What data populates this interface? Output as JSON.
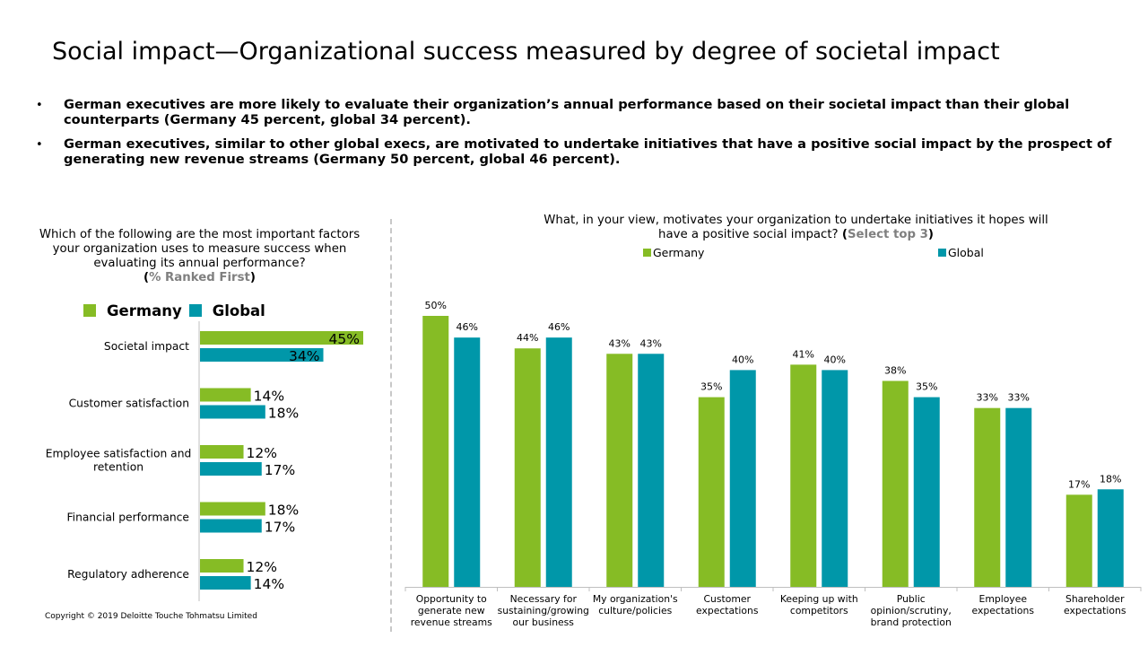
{
  "title": "Social impact—Organizational success measured by degree of societal impact",
  "bullets": [
    "German executives are more likely to evaluate their organization’s annual performance based on their societal impact than their global counterparts (Germany 45 percent, global 34 percent).",
    "German executives, similar to other global execs, are motivated to undertake initiatives that have a positive social impact by the prospect of generating new revenue streams (Germany 50 percent, global 46 percent)."
  ],
  "bullet_symbol": "•",
  "left_question": {
    "text": "Which of the following are the most important factors your organization uses to measure success when evaluating its annual performance?",
    "open_paren": "(",
    "highlight": "% Ranked First",
    "close_paren": ")"
  },
  "right_question": {
    "text": "What, in your view, motivates your organization to undertake initiatives it hopes will have a positive social impact?",
    "open_paren": "(",
    "highlight": "Select top 3",
    "close_paren": ")"
  },
  "copyright": "Copyright © 2019 Deloitte Touche Tohmatsu Limited",
  "colors": {
    "germany": "#86bc25",
    "global": "#0097a9",
    "axis": "#bfbfbf"
  },
  "chart_data": [
    {
      "type": "bar",
      "orientation": "horizontal",
      "legend_position": "top",
      "categories": [
        "Societal impact",
        "Customer satisfaction",
        "Employee satisfaction and retention",
        "Financial performance",
        "Regulatory adherence"
      ],
      "series": [
        {
          "name": "Germany",
          "values": [
            45,
            14,
            12,
            18,
            12
          ],
          "labels": [
            "45%",
            "14%",
            "12%",
            "18%",
            "12%"
          ]
        },
        {
          "name": "Global",
          "values": [
            34,
            18,
            17,
            17,
            14
          ],
          "labels": [
            "34%",
            "18%",
            "17%",
            "17%",
            "14%"
          ]
        }
      ],
      "xlim": [
        0,
        45
      ]
    },
    {
      "type": "bar",
      "orientation": "vertical",
      "legend_position": "top",
      "categories": [
        "Opportunity to generate new revenue streams",
        "Necessary for sustaining/growing our business",
        "My organization's culture/policies",
        "Customer expectations",
        "Keeping up with competitors",
        "Public opinion/scrutiny, brand protection",
        "Employee expectations",
        "Shareholder expectations"
      ],
      "series": [
        {
          "name": "Germany",
          "values": [
            50,
            44,
            43,
            35,
            41,
            38,
            33,
            17
          ],
          "labels": [
            "50%",
            "44%",
            "43%",
            "35%",
            "41%",
            "38%",
            "33%",
            "17%"
          ]
        },
        {
          "name": "Global",
          "values": [
            46,
            46,
            43,
            40,
            40,
            35,
            33,
            18
          ],
          "labels": [
            "46%",
            "46%",
            "43%",
            "40%",
            "40%",
            "35%",
            "33%",
            "18%"
          ]
        }
      ],
      "ylim": [
        0,
        50
      ]
    }
  ]
}
